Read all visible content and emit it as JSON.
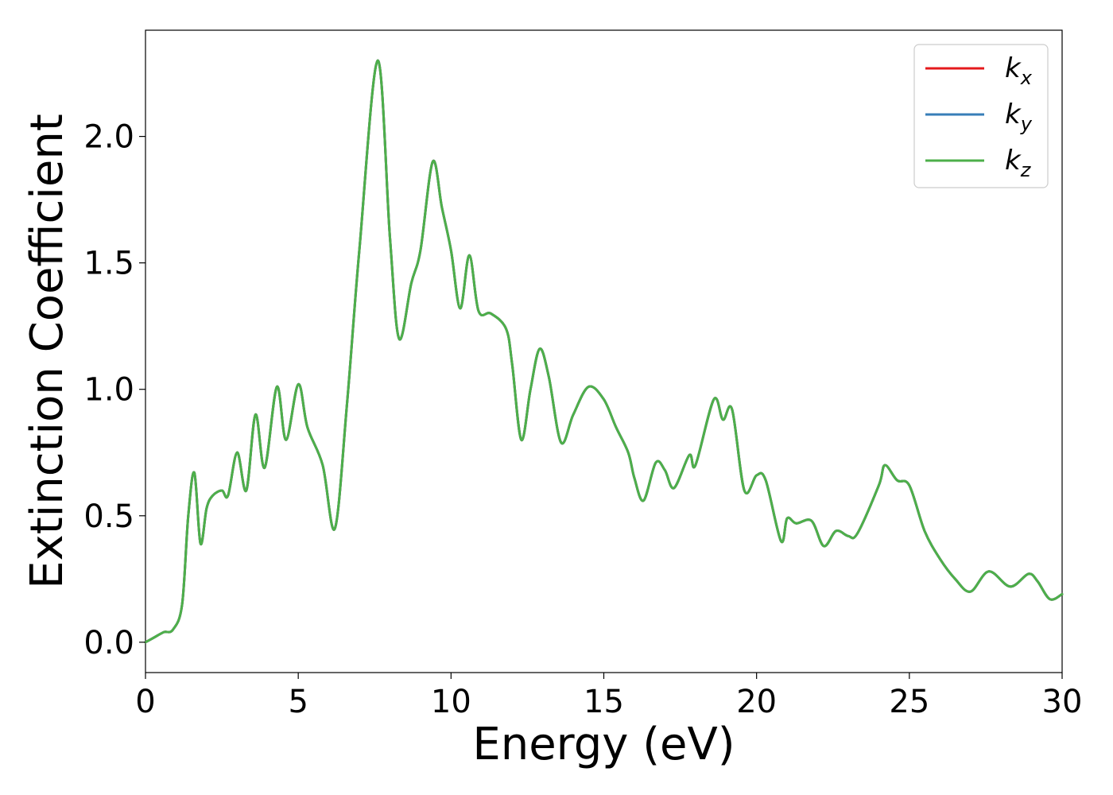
{
  "chart_data": {
    "type": "line",
    "title": "",
    "xlabel": "Energy (eV)",
    "ylabel": "Extinction Coefficient",
    "xlim": [
      0,
      30
    ],
    "ylim": [
      -0.12,
      2.42
    ],
    "x_ticks": [
      0,
      5,
      10,
      15,
      20,
      25,
      30
    ],
    "x_tick_labels": [
      "0",
      "5",
      "10",
      "15",
      "20",
      "25",
      "30"
    ],
    "y_ticks": [
      0.0,
      0.5,
      1.0,
      1.5,
      2.0
    ],
    "y_tick_labels": [
      "0.0",
      "0.5",
      "1.0",
      "1.5",
      "2.0"
    ],
    "grid": false,
    "legend_position": "top-right",
    "series": [
      {
        "name": "k",
        "subscript": "x",
        "color": "#e41a1c",
        "x": [
          0,
          0.3,
          0.6,
          0.9,
          1.2,
          1.4,
          1.6,
          1.8,
          2.0,
          2.2,
          2.5,
          2.7,
          3.0,
          3.3,
          3.6,
          3.9,
          4.3,
          4.6,
          5.0,
          5.3,
          5.8,
          6.2,
          6.6,
          7.0,
          7.6,
          8.0,
          8.3,
          8.7,
          9.0,
          9.4,
          9.7,
          10.0,
          10.3,
          10.6,
          10.9,
          11.3,
          11.8,
          12.0,
          12.3,
          12.6,
          12.9,
          13.2,
          13.6,
          14.0,
          14.5,
          15.0,
          15.4,
          15.8,
          16.0,
          16.3,
          16.7,
          17.0,
          17.3,
          17.8,
          18.0,
          18.6,
          18.9,
          19.2,
          19.6,
          20.0,
          20.3,
          20.8,
          21.0,
          21.3,
          21.8,
          22.2,
          22.6,
          23.0,
          23.3,
          24.0,
          24.2,
          24.6,
          25.0,
          25.5,
          26.0,
          26.5,
          27.0,
          27.6,
          28.3,
          28.9,
          29.2,
          29.6,
          30.0
        ],
        "y": [
          0.0,
          0.02,
          0.04,
          0.05,
          0.15,
          0.5,
          0.67,
          0.39,
          0.53,
          0.58,
          0.6,
          0.58,
          0.75,
          0.6,
          0.9,
          0.69,
          1.01,
          0.8,
          1.02,
          0.85,
          0.7,
          0.45,
          0.95,
          1.55,
          2.3,
          1.6,
          1.2,
          1.42,
          1.55,
          1.9,
          1.72,
          1.55,
          1.32,
          1.53,
          1.31,
          1.3,
          1.24,
          1.1,
          0.8,
          1.0,
          1.16,
          1.05,
          0.79,
          0.9,
          1.01,
          0.96,
          0.85,
          0.75,
          0.65,
          0.56,
          0.71,
          0.68,
          0.61,
          0.74,
          0.7,
          0.96,
          0.88,
          0.92,
          0.6,
          0.66,
          0.64,
          0.4,
          0.49,
          0.47,
          0.48,
          0.38,
          0.44,
          0.42,
          0.43,
          0.62,
          0.7,
          0.64,
          0.62,
          0.44,
          0.33,
          0.25,
          0.2,
          0.28,
          0.22,
          0.27,
          0.24,
          0.17,
          0.19
        ]
      },
      {
        "name": "k",
        "subscript": "y",
        "color": "#377eb8",
        "x": [
          0,
          0.3,
          0.6,
          0.9,
          1.2,
          1.4,
          1.6,
          1.8,
          2.0,
          2.2,
          2.5,
          2.7,
          3.0,
          3.3,
          3.6,
          3.9,
          4.3,
          4.6,
          5.0,
          5.3,
          5.8,
          6.2,
          6.6,
          7.0,
          7.6,
          8.0,
          8.3,
          8.7,
          9.0,
          9.4,
          9.7,
          10.0,
          10.3,
          10.6,
          10.9,
          11.3,
          11.8,
          12.0,
          12.3,
          12.6,
          12.9,
          13.2,
          13.6,
          14.0,
          14.5,
          15.0,
          15.4,
          15.8,
          16.0,
          16.3,
          16.7,
          17.0,
          17.3,
          17.8,
          18.0,
          18.6,
          18.9,
          19.2,
          19.6,
          20.0,
          20.3,
          20.8,
          21.0,
          21.3,
          21.8,
          22.2,
          22.6,
          23.0,
          23.3,
          24.0,
          24.2,
          24.6,
          25.0,
          25.5,
          26.0,
          26.5,
          27.0,
          27.6,
          28.3,
          28.9,
          29.2,
          29.6,
          30.0
        ],
        "y": [
          0.0,
          0.02,
          0.04,
          0.05,
          0.15,
          0.5,
          0.67,
          0.39,
          0.53,
          0.58,
          0.6,
          0.58,
          0.75,
          0.6,
          0.9,
          0.69,
          1.01,
          0.8,
          1.02,
          0.85,
          0.7,
          0.45,
          0.95,
          1.55,
          2.3,
          1.6,
          1.2,
          1.42,
          1.55,
          1.9,
          1.72,
          1.55,
          1.32,
          1.53,
          1.31,
          1.3,
          1.24,
          1.1,
          0.8,
          1.0,
          1.16,
          1.05,
          0.79,
          0.9,
          1.01,
          0.96,
          0.85,
          0.75,
          0.65,
          0.56,
          0.71,
          0.68,
          0.61,
          0.74,
          0.7,
          0.96,
          0.88,
          0.92,
          0.6,
          0.66,
          0.64,
          0.4,
          0.49,
          0.47,
          0.48,
          0.38,
          0.44,
          0.42,
          0.43,
          0.62,
          0.7,
          0.64,
          0.62,
          0.44,
          0.33,
          0.25,
          0.2,
          0.28,
          0.22,
          0.27,
          0.24,
          0.17,
          0.19
        ]
      },
      {
        "name": "k",
        "subscript": "z",
        "color": "#4daf4a",
        "x": [
          0,
          0.3,
          0.6,
          0.9,
          1.2,
          1.4,
          1.6,
          1.8,
          2.0,
          2.2,
          2.5,
          2.7,
          3.0,
          3.3,
          3.6,
          3.9,
          4.3,
          4.6,
          5.0,
          5.3,
          5.8,
          6.2,
          6.6,
          7.0,
          7.6,
          8.0,
          8.3,
          8.7,
          9.0,
          9.4,
          9.7,
          10.0,
          10.3,
          10.6,
          10.9,
          11.3,
          11.8,
          12.0,
          12.3,
          12.6,
          12.9,
          13.2,
          13.6,
          14.0,
          14.5,
          15.0,
          15.4,
          15.8,
          16.0,
          16.3,
          16.7,
          17.0,
          17.3,
          17.8,
          18.0,
          18.6,
          18.9,
          19.2,
          19.6,
          20.0,
          20.3,
          20.8,
          21.0,
          21.3,
          21.8,
          22.2,
          22.6,
          23.0,
          23.3,
          24.0,
          24.2,
          24.6,
          25.0,
          25.5,
          26.0,
          26.5,
          27.0,
          27.6,
          28.3,
          28.9,
          29.2,
          29.6,
          30.0
        ],
        "y": [
          0.0,
          0.02,
          0.04,
          0.05,
          0.15,
          0.5,
          0.67,
          0.39,
          0.53,
          0.58,
          0.6,
          0.58,
          0.75,
          0.6,
          0.9,
          0.69,
          1.01,
          0.8,
          1.02,
          0.85,
          0.7,
          0.45,
          0.95,
          1.55,
          2.3,
          1.6,
          1.2,
          1.42,
          1.55,
          1.9,
          1.72,
          1.55,
          1.32,
          1.53,
          1.31,
          1.3,
          1.24,
          1.1,
          0.8,
          1.0,
          1.16,
          1.05,
          0.79,
          0.9,
          1.01,
          0.96,
          0.85,
          0.75,
          0.65,
          0.56,
          0.71,
          0.68,
          0.61,
          0.74,
          0.7,
          0.96,
          0.88,
          0.92,
          0.6,
          0.66,
          0.64,
          0.4,
          0.49,
          0.47,
          0.48,
          0.38,
          0.44,
          0.42,
          0.43,
          0.62,
          0.7,
          0.64,
          0.62,
          0.44,
          0.33,
          0.25,
          0.2,
          0.28,
          0.22,
          0.27,
          0.24,
          0.17,
          0.19
        ]
      }
    ]
  }
}
